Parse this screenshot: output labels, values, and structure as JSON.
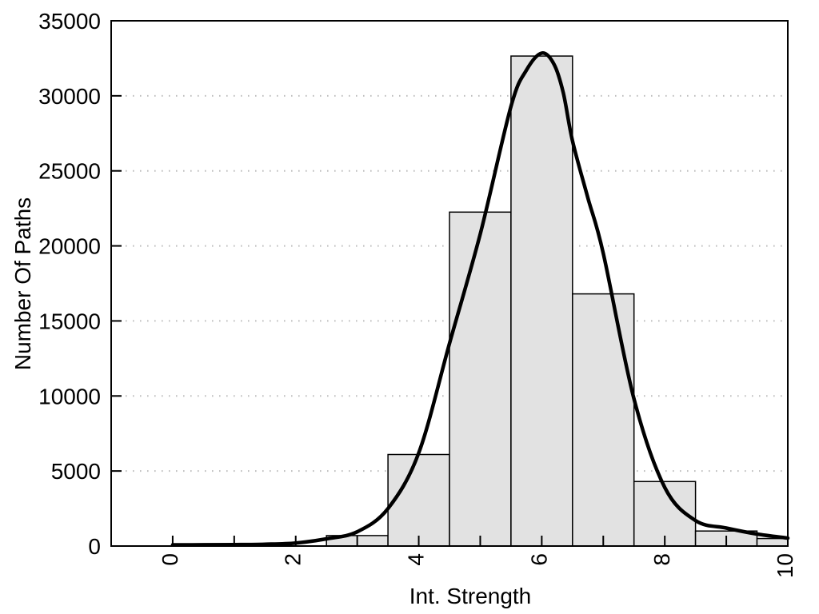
{
  "chart_data": {
    "type": "bar",
    "subtype": "histogram-with-density-curve",
    "title": "",
    "xlabel": "Int. Strength",
    "ylabel": "Number Of Paths",
    "xlim": [
      -1,
      10
    ],
    "ylim": [
      0,
      35000
    ],
    "x_tick_labels": [
      "0",
      "2",
      "4",
      "6",
      "8",
      "10"
    ],
    "x_tick_values": [
      0,
      2,
      4,
      6,
      8,
      10
    ],
    "x_minor_tick_values": [
      1,
      3,
      5,
      7,
      9
    ],
    "y_tick_labels": [
      "0",
      "5000",
      "10000",
      "15000",
      "20000",
      "25000",
      "30000",
      "35000"
    ],
    "y_tick_values": [
      0,
      5000,
      10000,
      15000,
      20000,
      25000,
      30000,
      35000
    ],
    "grid_y_values": [
      5000,
      10000,
      15000,
      20000,
      25000,
      30000
    ],
    "grid_on": true,
    "legend": null,
    "bars": [
      {
        "x0": 2.5,
        "x1": 3.5,
        "count": 700
      },
      {
        "x0": 3.5,
        "x1": 4.5,
        "count": 6100
      },
      {
        "x0": 4.5,
        "x1": 5.5,
        "count": 22250
      },
      {
        "x0": 5.5,
        "x1": 6.5,
        "count": 32650
      },
      {
        "x0": 6.5,
        "x1": 7.5,
        "count": 16800
      },
      {
        "x0": 7.5,
        "x1": 8.5,
        "count": 4300
      },
      {
        "x0": 8.5,
        "x1": 9.5,
        "count": 1000
      },
      {
        "x0": 9.5,
        "x1": 10.0,
        "count": 500
      }
    ],
    "density_curve_points": [
      [
        0,
        80
      ],
      [
        0.5,
        85
      ],
      [
        1,
        95
      ],
      [
        1.5,
        120
      ],
      [
        2,
        200
      ],
      [
        2.5,
        480
      ],
      [
        3,
        950
      ],
      [
        3.5,
        2500
      ],
      [
        4,
        6200
      ],
      [
        4.5,
        13500
      ],
      [
        5,
        20800
      ],
      [
        5.5,
        29300
      ],
      [
        5.75,
        31700
      ],
      [
        6.0,
        32850
      ],
      [
        6.2,
        32100
      ],
      [
        6.35,
        30200
      ],
      [
        6.5,
        27000
      ],
      [
        6.75,
        23200
      ],
      [
        7,
        19500
      ],
      [
        7.5,
        9800
      ],
      [
        8,
        3900
      ],
      [
        8.5,
        1700
      ],
      [
        9,
        1200
      ],
      [
        9.5,
        800
      ],
      [
        10,
        530
      ]
    ],
    "colors": {
      "background": "#ffffff",
      "bar_fill": "#e2e2e2",
      "bar_stroke": "#000000",
      "curve": "#000000",
      "grid": "#bdbdbd",
      "axis": "#000000",
      "text": "#000000"
    }
  }
}
